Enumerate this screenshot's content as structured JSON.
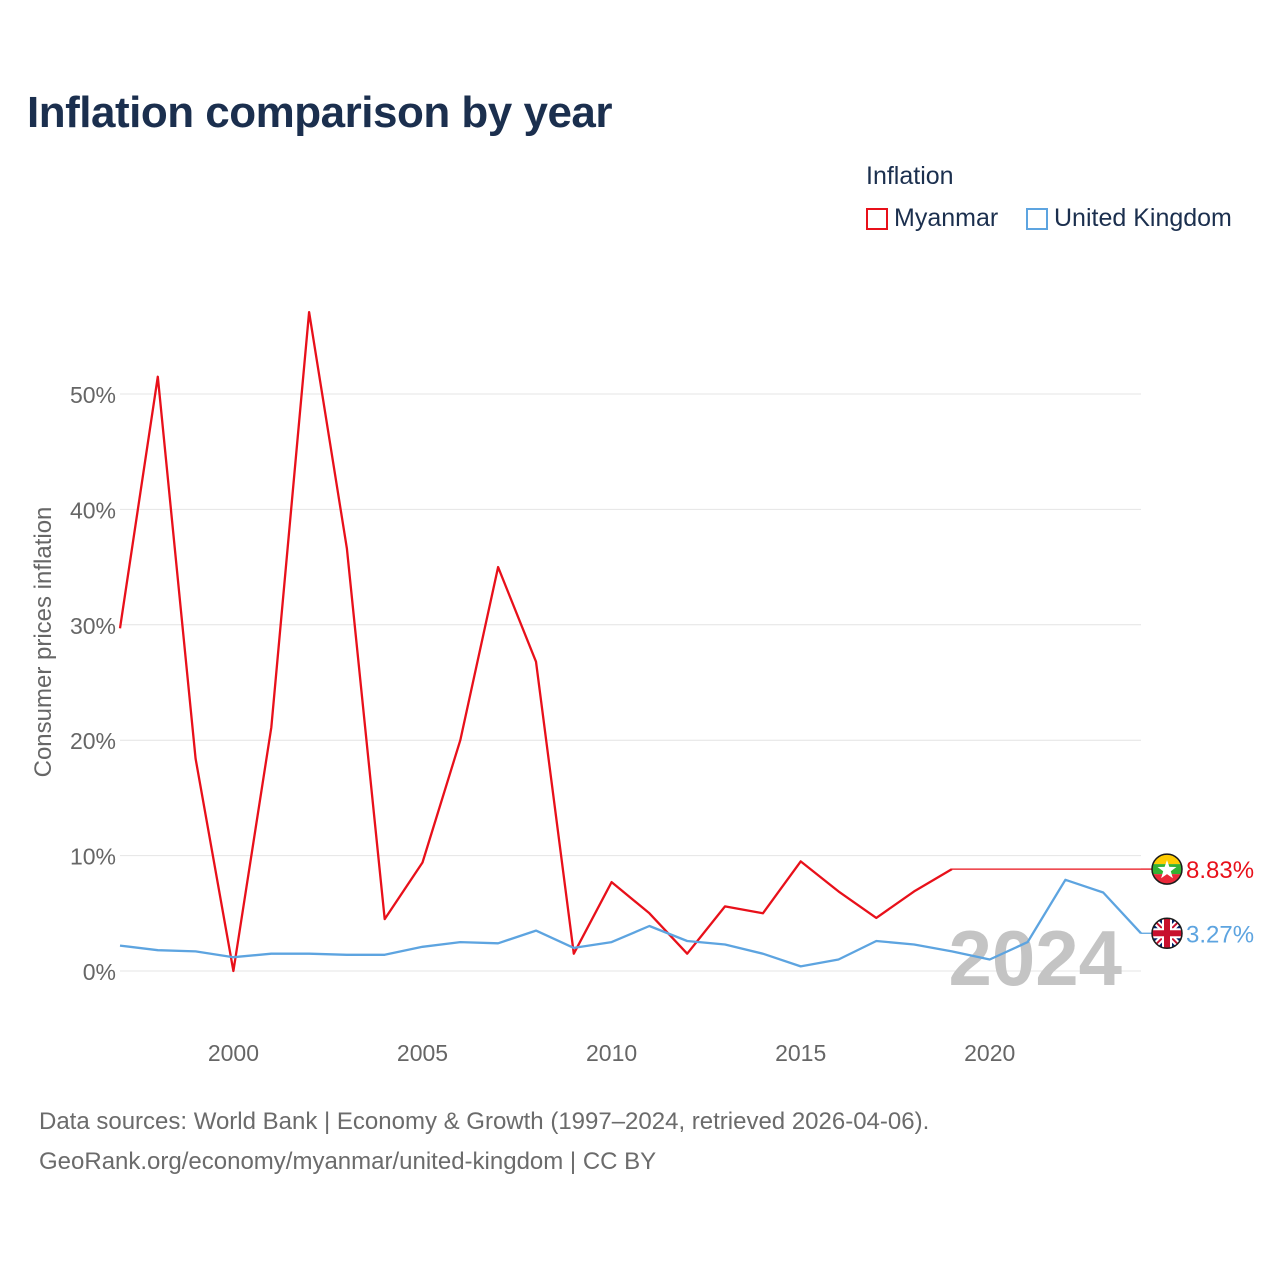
{
  "title": "Inflation comparison by year",
  "legend": {
    "title": "Inflation",
    "items": [
      {
        "label": "Myanmar",
        "color": "#e8101a"
      },
      {
        "label": "United Kingdom",
        "color": "#5da4e0"
      }
    ]
  },
  "footer": {
    "line1": "Data sources: World Bank | Economy & Growth (1997–2024, retrieved 2026-04-06).",
    "line2": "GeoRank.org/economy/myanmar/united-kingdom | CC BY"
  },
  "chart_data": {
    "type": "line",
    "title": "Inflation comparison by year",
    "xlabel": "",
    "ylabel": "Consumer prices inflation",
    "xlim": [
      1997,
      2024
    ],
    "ylim": [
      -3,
      58
    ],
    "x_ticks": [
      2000,
      2005,
      2010,
      2015,
      2020
    ],
    "y_ticks": [
      0,
      10,
      20,
      30,
      40,
      50
    ],
    "y_tick_labels": [
      "0%",
      "10%",
      "20%",
      "30%",
      "40%",
      "50%"
    ],
    "grid": true,
    "year_watermark": "2024",
    "series": [
      {
        "name": "Myanmar",
        "color": "#e8101a",
        "end_label": "8.83%",
        "flag": "myanmar",
        "x": [
          1997,
          1998,
          1999,
          2000,
          2001,
          2002,
          2003,
          2004,
          2005,
          2006,
          2007,
          2008,
          2009,
          2010,
          2011,
          2012,
          2013,
          2014,
          2015,
          2016,
          2017,
          2018,
          2019
        ],
        "values": [
          29.7,
          51.5,
          18.4,
          0.0,
          21.1,
          57.1,
          36.6,
          4.5,
          9.4,
          20.0,
          35.0,
          26.8,
          1.5,
          7.7,
          5.0,
          1.5,
          5.6,
          5.0,
          9.5,
          6.9,
          4.6,
          6.9,
          8.83
        ],
        "extend_to": 2024,
        "extend_value": 8.83
      },
      {
        "name": "United Kingdom",
        "color": "#5da4e0",
        "end_label": "3.27%",
        "flag": "uk",
        "x": [
          1997,
          1998,
          1999,
          2000,
          2001,
          2002,
          2003,
          2004,
          2005,
          2006,
          2007,
          2008,
          2009,
          2010,
          2011,
          2012,
          2013,
          2014,
          2015,
          2016,
          2017,
          2018,
          2019,
          2020,
          2021,
          2022,
          2023,
          2024
        ],
        "values": [
          2.2,
          1.8,
          1.7,
          1.2,
          1.5,
          1.5,
          1.4,
          1.4,
          2.1,
          2.5,
          2.4,
          3.5,
          2.0,
          2.5,
          3.9,
          2.6,
          2.3,
          1.5,
          0.4,
          1.0,
          2.6,
          2.3,
          1.7,
          1.0,
          2.5,
          7.9,
          6.8,
          3.27
        ]
      }
    ]
  }
}
